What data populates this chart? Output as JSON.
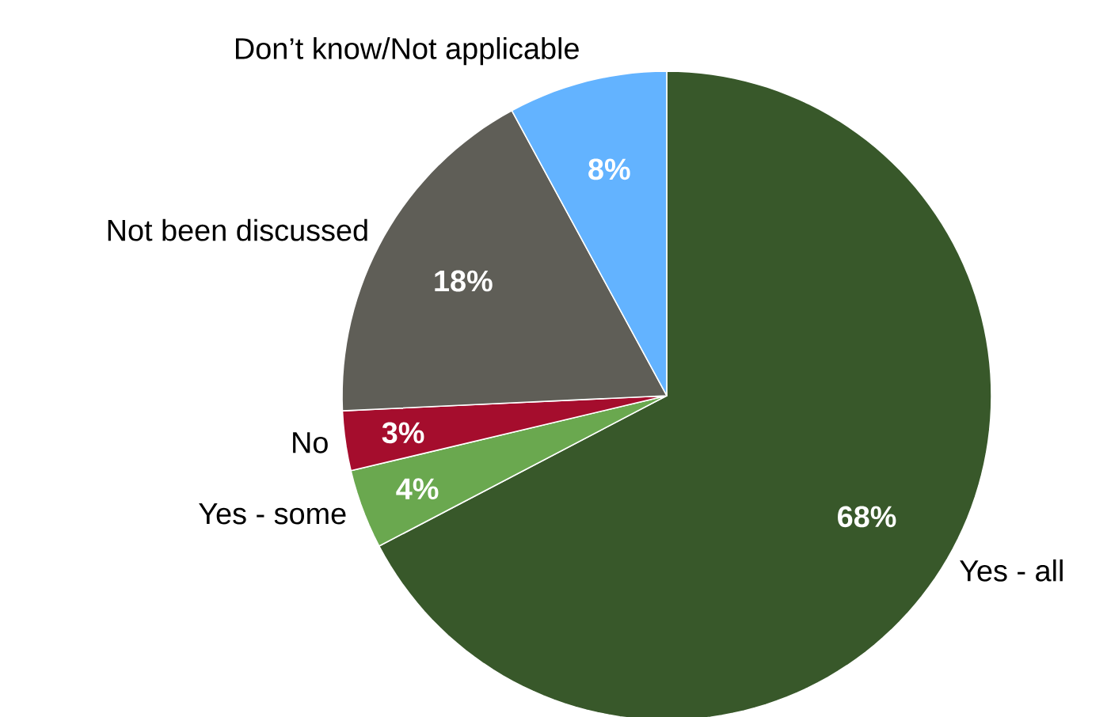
{
  "chart_data": {
    "type": "pie",
    "categories": [
      "Yes - all",
      "Yes - some",
      "No",
      "Not been discussed",
      "Don’t know/Not applicable"
    ],
    "values": [
      68,
      4,
      3,
      18,
      8
    ],
    "value_labels": [
      "68%",
      "4%",
      "3%",
      "18%",
      "8%"
    ],
    "colors": [
      "#38582a",
      "#6aa84f",
      "#a50d2d",
      "#5f5e57",
      "#63b3ff"
    ]
  }
}
